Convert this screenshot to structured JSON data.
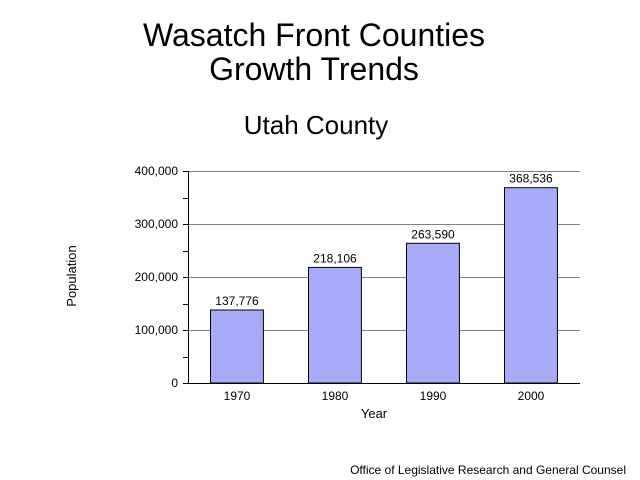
{
  "header": {
    "title_line1": "Wasatch Front Counties",
    "title_line2": "Growth Trends",
    "subtitle": "Utah County"
  },
  "footer": {
    "credit": "Office of Legislative Research and General Counsel"
  },
  "colors": {
    "bar_fill": "#a8acf8",
    "bar_stroke": "#000000",
    "grid": "#808080",
    "axis": "#000000"
  },
  "chart_data": {
    "type": "bar",
    "title": "",
    "xlabel": "Year",
    "ylabel": "Population",
    "categories": [
      "1970",
      "1980",
      "1990",
      "2000"
    ],
    "values": [
      137776,
      218106,
      263590,
      368536
    ],
    "value_labels": [
      "137,776",
      "218,106",
      "263,590",
      "368,536"
    ],
    "ylim": [
      0,
      400000
    ],
    "yticks": [
      0,
      100000,
      200000,
      300000,
      400000
    ],
    "ytick_labels": [
      "0",
      "100,000",
      "200,000",
      "300,000",
      "400,000"
    ],
    "minor_ticks_per_major": 2,
    "grid": true,
    "legend": "none"
  }
}
